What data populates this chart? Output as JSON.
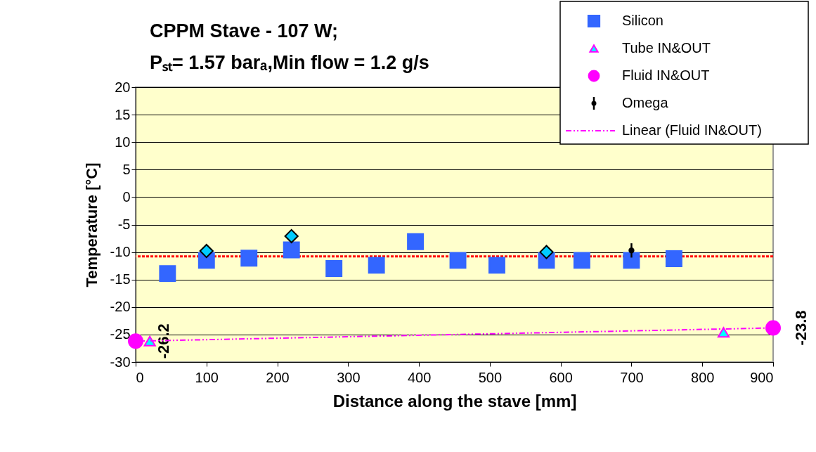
{
  "chart_data": {
    "type": "scatter",
    "title": "CPPM Stave - 107 W;\nPₛₜ= 1.57 barₐ,Min flow = 1.2 g/s",
    "xlabel": "Distance along the stave [mm]",
    "ylabel": "Temperature [°C]",
    "xlim": [
      0,
      900
    ],
    "xticks": [
      0,
      100,
      200,
      300,
      400,
      500,
      600,
      700,
      800,
      900
    ],
    "ylim": [
      -30,
      20
    ],
    "yticks": [
      -30,
      -25,
      -20,
      -15,
      -10,
      -5,
      0,
      5,
      10,
      15,
      20
    ],
    "grid": "y",
    "legend": "top right",
    "series": [
      {
        "name": "Silicon",
        "marker": "square",
        "color": "#3366ff",
        "x": [
          45,
          100,
          160,
          220,
          280,
          340,
          395,
          455,
          510,
          580,
          630,
          700,
          760
        ],
        "values": [
          -13.9,
          -11.5,
          -11.1,
          -9.6,
          -13.0,
          -12.4,
          -8.1,
          -11.5,
          -12.4,
          -11.5,
          -11.5,
          -11.5,
          -11.2
        ]
      },
      {
        "name": "Tube IN&OUT",
        "marker": "triangle",
        "color": "#00ffff",
        "x": [
          20,
          830
        ],
        "values": [
          -26.2,
          -24.6
        ]
      },
      {
        "name": "Fluid IN&OUT",
        "marker": "circle",
        "color": "#ff00ff",
        "x": [
          0,
          900
        ],
        "values": [
          -26.2,
          -23.8
        ],
        "value_labels": [
          "-26.2",
          "-23.8"
        ]
      },
      {
        "name": "Omega",
        "marker": "circle",
        "color": "#000000",
        "x": [
          700
        ],
        "values": [
          -9.7
        ],
        "errors": [
          1.3
        ]
      },
      {
        "name": "Linear (Fluid IN&OUT)",
        "type": "line",
        "line_style": "dashed",
        "color": "#ff00ff",
        "x": [
          0,
          900
        ],
        "values": [
          -26.2,
          -23.8
        ]
      },
      {
        "marker": "diamond",
        "color": "#00ccff",
        "x": [
          100,
          220,
          580
        ],
        "values": [
          -9.8,
          -7.1,
          -10.0
        ]
      }
    ],
    "ref_lines": [
      {
        "axis": "y",
        "value": -10.8,
        "color": "#ff0000",
        "line_style": "dotted"
      }
    ]
  }
}
